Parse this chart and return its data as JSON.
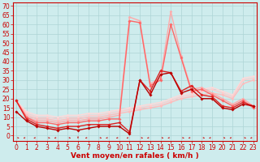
{
  "background_color": "#ceeced",
  "grid_color": "#add4d6",
  "xlabel": "Vent moyen/en rafales ( km/h )",
  "xlabel_color": "#cc0000",
  "xlabel_fontsize": 6.5,
  "xticks": [
    0,
    1,
    2,
    3,
    4,
    5,
    6,
    7,
    8,
    9,
    10,
    11,
    12,
    13,
    14,
    15,
    16,
    17,
    18,
    19,
    20,
    21,
    22,
    23
  ],
  "yticks": [
    0,
    5,
    10,
    15,
    20,
    25,
    30,
    35,
    40,
    45,
    50,
    55,
    60,
    65,
    70
  ],
  "ylim": [
    -3,
    72
  ],
  "xlim": [
    -0.3,
    23.3
  ],
  "series": [
    {
      "x": [
        0,
        1,
        2,
        3,
        4,
        5,
        6,
        7,
        8,
        9,
        10,
        11,
        12,
        13,
        14,
        15,
        16,
        17,
        18,
        19,
        20,
        21,
        22,
        23
      ],
      "y": [
        13,
        8,
        5,
        4,
        3,
        4,
        3,
        4,
        5,
        5,
        5,
        1,
        30,
        22,
        33,
        34,
        23,
        25,
        20,
        20,
        15,
        14,
        17,
        16
      ],
      "color": "#bb0000",
      "lw": 1.0,
      "marker": "D",
      "ms": 1.8
    },
    {
      "x": [
        0,
        1,
        2,
        3,
        4,
        5,
        6,
        7,
        8,
        9,
        10,
        11,
        12,
        13,
        14,
        15,
        16,
        17,
        18,
        19,
        20,
        21,
        22,
        23
      ],
      "y": [
        19,
        9,
        6,
        5,
        4,
        5,
        5,
        6,
        6,
        6,
        7,
        2,
        30,
        24,
        35,
        34,
        24,
        27,
        22,
        21,
        16,
        15,
        18,
        16
      ],
      "color": "#dd2222",
      "lw": 1.0,
      "marker": "D",
      "ms": 1.8
    },
    {
      "x": [
        0,
        1,
        2,
        3,
        4,
        5,
        6,
        7,
        8,
        9,
        10,
        11,
        12,
        13,
        14,
        15,
        16,
        17,
        18,
        19,
        20,
        21,
        22,
        23
      ],
      "y": [
        19,
        10,
        7,
        7,
        6,
        7,
        7,
        8,
        8,
        9,
        9,
        62,
        61,
        27,
        30,
        60,
        42,
        24,
        25,
        22,
        19,
        16,
        19,
        15
      ],
      "color": "#ff6666",
      "lw": 1.0,
      "marker": "D",
      "ms": 1.8
    },
    {
      "x": [
        0,
        1,
        2,
        3,
        4,
        5,
        6,
        7,
        8,
        9,
        10,
        11,
        12,
        13,
        14,
        15,
        16,
        17,
        18,
        19,
        20,
        21,
        22,
        23
      ],
      "y": [
        19,
        10,
        8,
        8,
        7,
        8,
        8,
        9,
        9,
        10,
        11,
        64,
        62,
        28,
        31,
        67,
        43,
        25,
        26,
        23,
        20,
        17,
        20,
        16
      ],
      "color": "#ffaaaa",
      "lw": 1.0,
      "marker": "D",
      "ms": 1.6
    },
    {
      "x": [
        0,
        1,
        2,
        3,
        4,
        5,
        6,
        7,
        8,
        9,
        10,
        11,
        12,
        13,
        14,
        15,
        16,
        17,
        18,
        19,
        20,
        21,
        22,
        23
      ],
      "y": [
        19,
        11,
        9,
        9,
        8,
        9,
        9,
        10,
        10,
        11,
        12,
        13,
        14,
        15,
        16,
        18,
        20,
        21,
        22,
        23,
        22,
        20,
        28,
        30
      ],
      "color": "#ffbbbb",
      "lw": 1.0,
      "marker": "D",
      "ms": 1.5
    },
    {
      "x": [
        0,
        1,
        2,
        3,
        4,
        5,
        6,
        7,
        8,
        9,
        10,
        11,
        12,
        13,
        14,
        15,
        16,
        17,
        18,
        19,
        20,
        21,
        22,
        23
      ],
      "y": [
        19,
        12,
        10,
        10,
        9,
        10,
        10,
        11,
        11,
        12,
        13,
        14,
        15,
        16,
        17,
        19,
        21,
        22,
        24,
        25,
        23,
        21,
        30,
        31
      ],
      "color": "#ffcccc",
      "lw": 1.0,
      "marker": "D",
      "ms": 1.5
    },
    {
      "x": [
        0,
        1,
        2,
        3,
        4,
        5,
        6,
        7,
        8,
        9,
        10,
        11,
        12,
        13,
        14,
        15,
        16,
        17,
        18,
        19,
        20,
        21,
        22,
        23
      ],
      "y": [
        19,
        13,
        11,
        11,
        10,
        11,
        11,
        12,
        12,
        13,
        14,
        15,
        16,
        17,
        18,
        20,
        22,
        23,
        25,
        26,
        24,
        22,
        31,
        32
      ],
      "color": "#ffd8d8",
      "lw": 1.0,
      "marker": "D",
      "ms": 1.5
    }
  ],
  "tick_color": "#cc0000",
  "tick_fontsize": 5.5
}
